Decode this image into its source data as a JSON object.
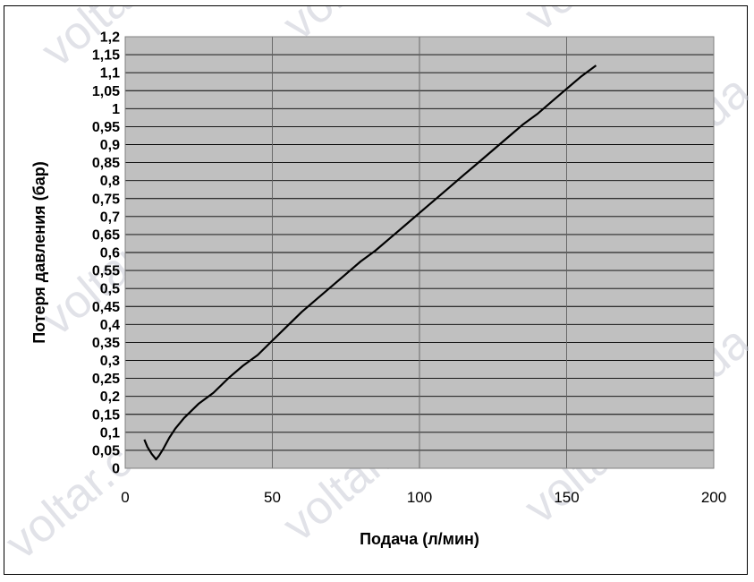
{
  "chart_data": {
    "type": "line",
    "xlabel": "Подача (л/мин)",
    "ylabel": "Потеря давления (бар)",
    "xlim": [
      0,
      200
    ],
    "ylim": [
      0,
      1.2
    ],
    "x_ticks": [
      "0",
      "50",
      "100",
      "150",
      "200"
    ],
    "y_ticks": [
      "0",
      "0,05",
      "0,1",
      "0,15",
      "0,2",
      "0,25",
      "0,3",
      "0,35",
      "0,4",
      "0,45",
      "0,5",
      "0,55",
      "0,6",
      "0,65",
      "0,7",
      "0,75",
      "0,8",
      "0,85",
      "0,9",
      "0,95",
      "1",
      "1,05",
      "1,1",
      "1,15",
      "1,2"
    ],
    "grid": true,
    "background_color": "#c0c0c0",
    "line_color": "#000000",
    "series": [
      {
        "x": [
          6.5,
          7.5,
          9,
          10.5,
          11.5,
          13,
          15,
          17,
          20,
          25,
          30,
          35,
          40,
          45,
          50,
          55,
          60,
          65,
          70,
          75,
          80,
          85,
          90,
          95,
          100,
          105,
          110,
          115,
          120,
          125,
          130,
          135,
          140,
          145,
          150,
          155,
          160
        ],
        "y": [
          0.08,
          0.06,
          0.04,
          0.025,
          0.035,
          0.055,
          0.085,
          0.11,
          0.14,
          0.18,
          0.21,
          0.25,
          0.285,
          0.315,
          0.355,
          0.395,
          0.435,
          0.47,
          0.505,
          0.54,
          0.575,
          0.605,
          0.64,
          0.675,
          0.71,
          0.745,
          0.78,
          0.815,
          0.85,
          0.885,
          0.92,
          0.955,
          0.985,
          1.02,
          1.055,
          1.09,
          1.12
        ]
      }
    ]
  },
  "watermark": "voltar.com.ua"
}
